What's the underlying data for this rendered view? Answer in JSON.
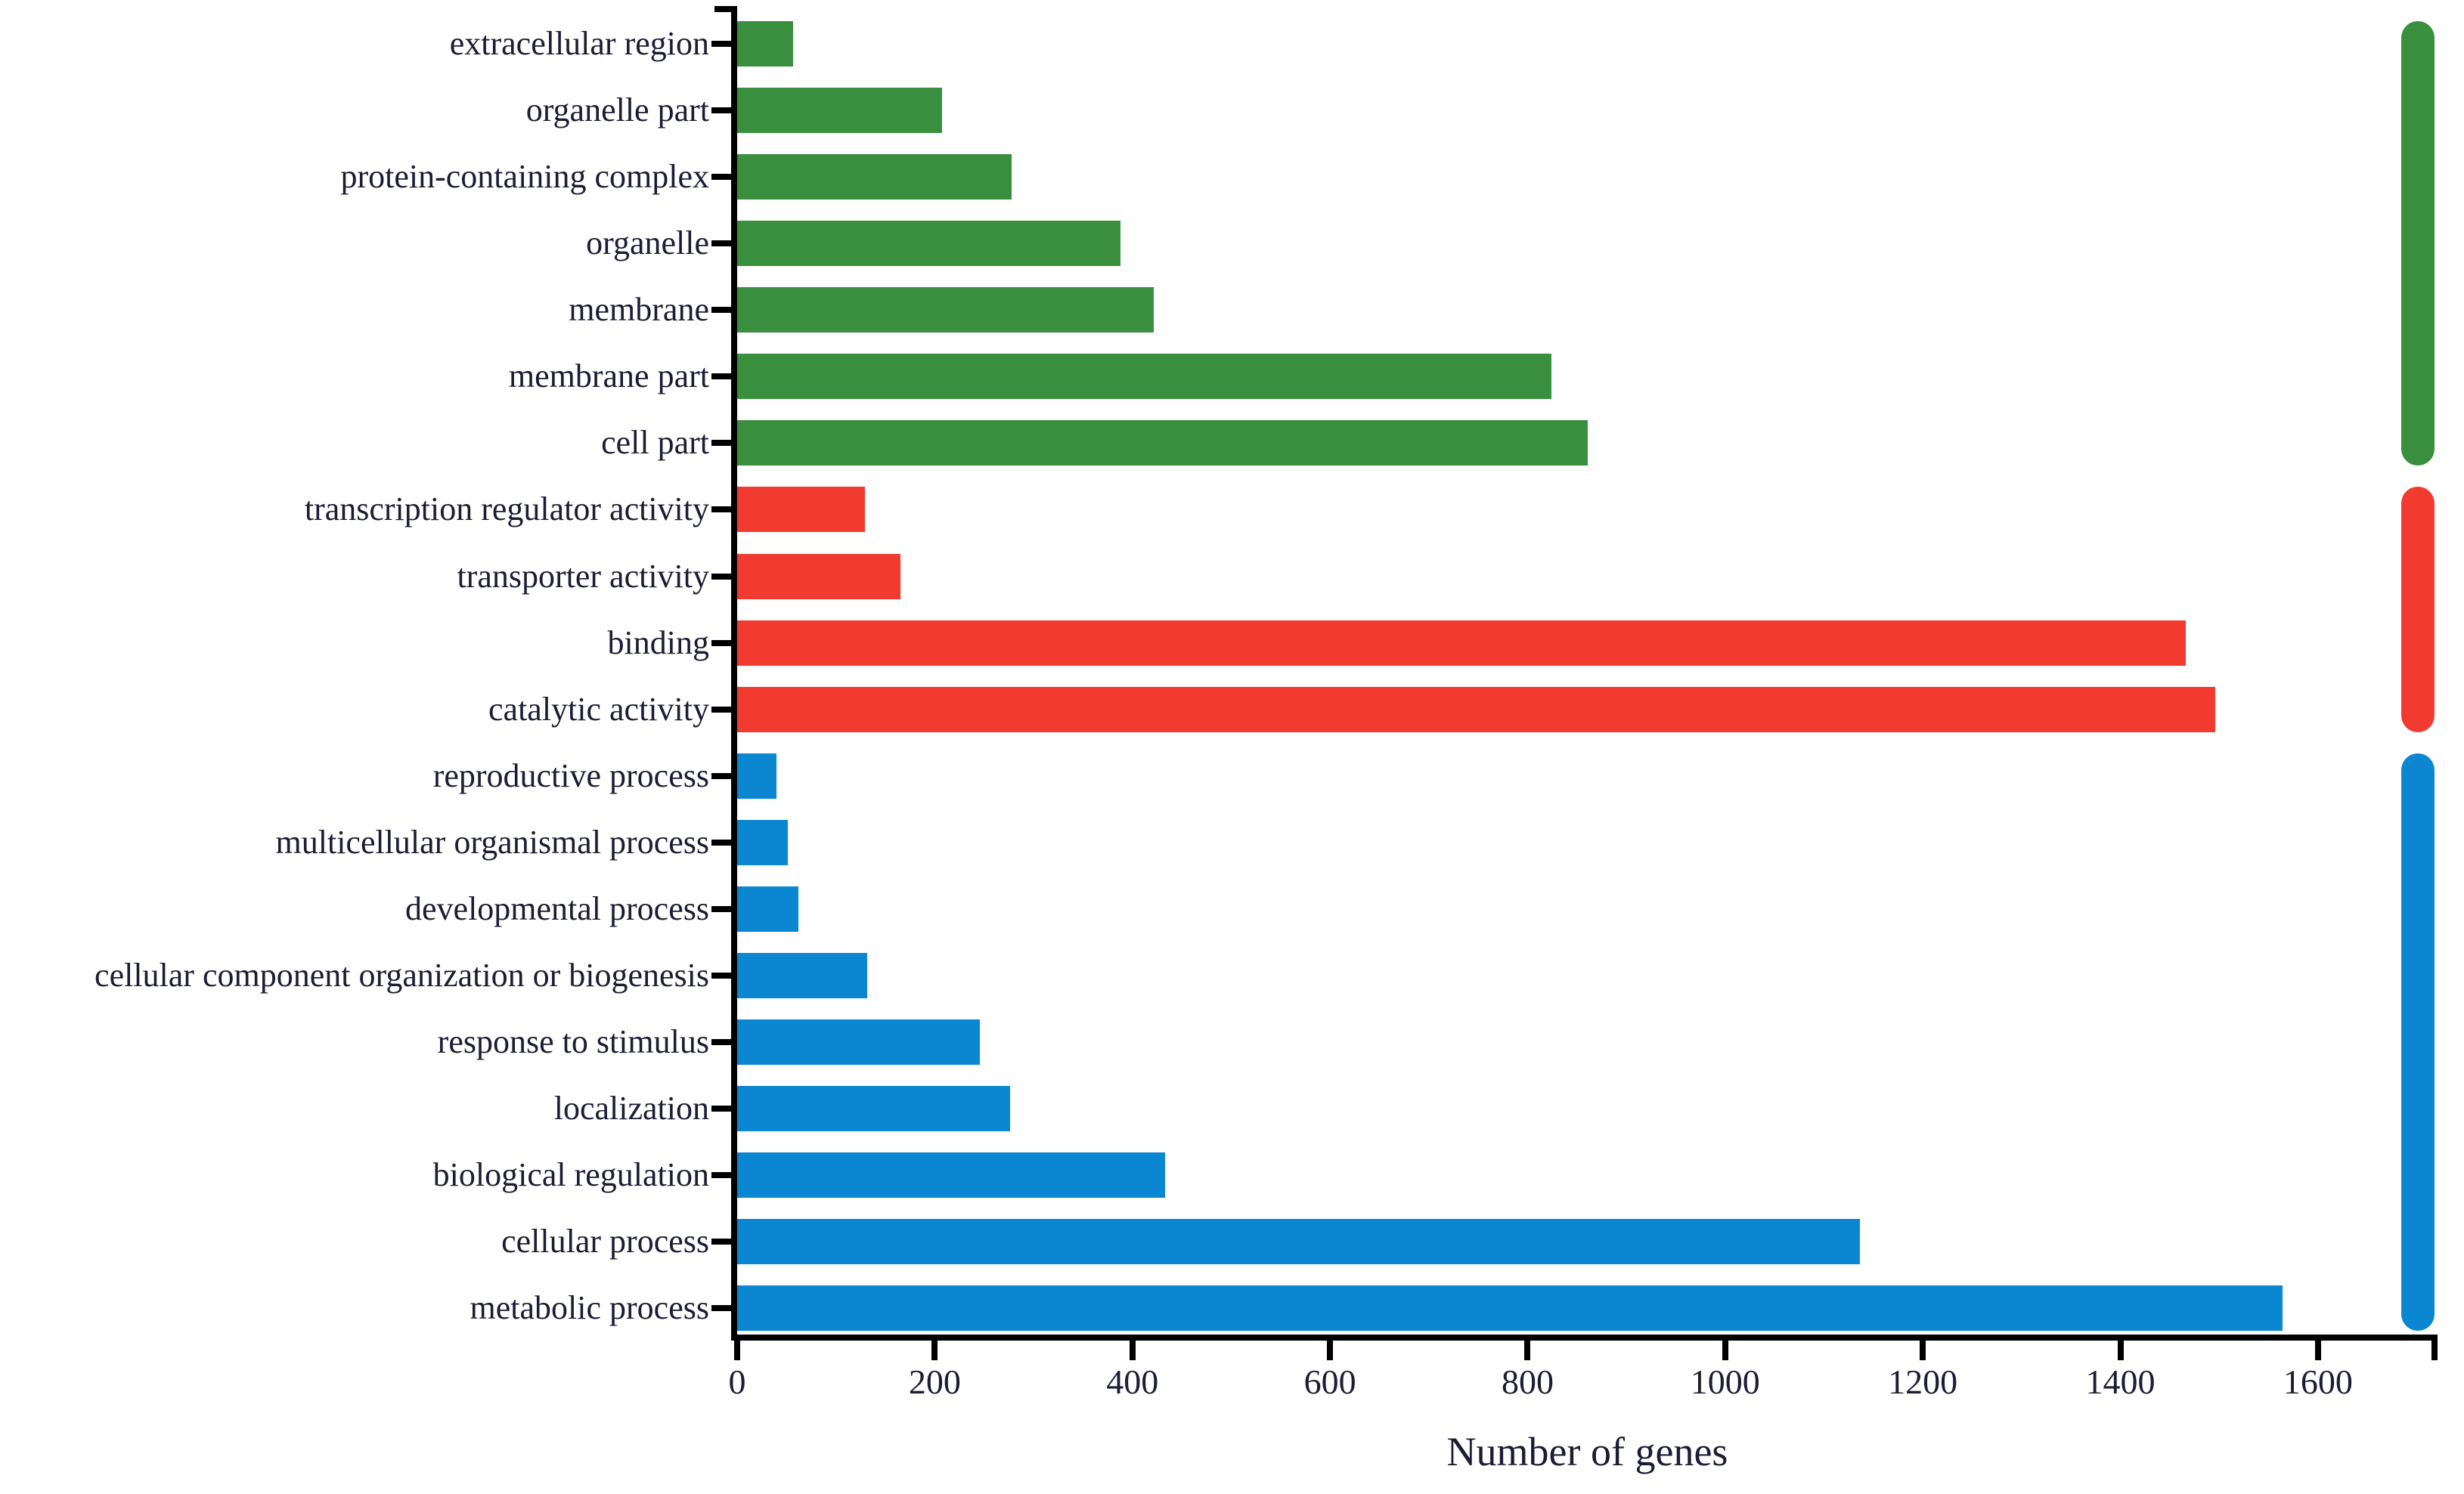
{
  "chart_data": {
    "type": "bar",
    "orientation": "horizontal",
    "title": "",
    "xlabel": "Number of genes",
    "ylabel": "",
    "xlim": [
      0,
      1721
    ],
    "xticks": [
      0,
      200,
      400,
      600,
      800,
      1000,
      1200,
      1400,
      1600
    ],
    "grid": false,
    "legend_position": "right-capsules",
    "categories": [
      "extracellular region",
      "organelle part",
      "protein-containing complex",
      "organelle",
      "membrane",
      "membrane part",
      "cell part",
      "transcription regulator activity",
      "transporter activity",
      "binding",
      "catalytic activity",
      "reproductive process",
      "multicellular organismal process",
      "developmental process",
      "cellular component organization or biogenesis",
      "response to stimulus",
      "localization",
      "biological regulation",
      "cellular process",
      "metabolic process"
    ],
    "values": [
      57,
      207,
      278,
      388,
      422,
      824,
      861,
      129,
      165,
      1466,
      1496,
      40,
      51,
      62,
      132,
      246,
      276,
      433,
      1136,
      1564
    ],
    "groups": [
      {
        "id": "group-green",
        "color": "#3a8f3e",
        "start_index": 0,
        "end_index": 6
      },
      {
        "id": "group-red",
        "color": "#f23b30",
        "start_index": 7,
        "end_index": 10
      },
      {
        "id": "group-blue",
        "color": "#0b86d0",
        "start_index": 11,
        "end_index": 19
      }
    ]
  },
  "style_colors": {
    "axis_line": "#000000",
    "tick_text": "#1c1c35",
    "background": "#ffffff"
  }
}
